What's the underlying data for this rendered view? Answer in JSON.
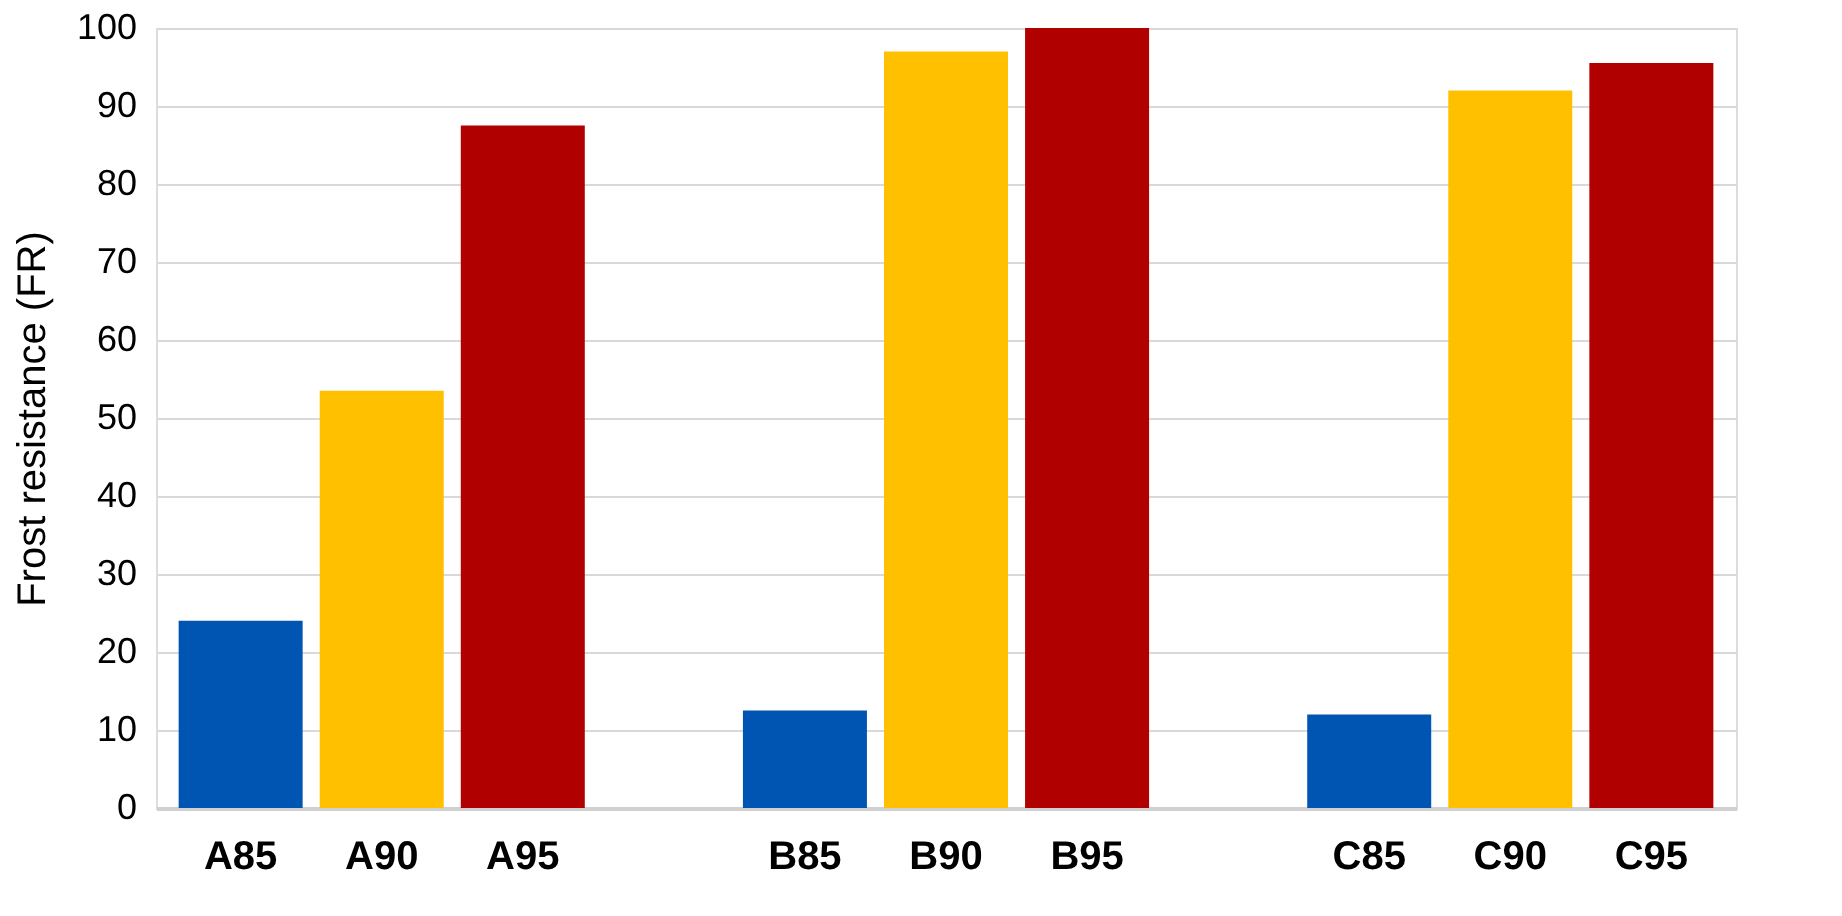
{
  "chart_data": {
    "type": "bar",
    "ylabel": "Frost resistance (FR)",
    "categories": [
      "A85",
      "A90",
      "A95",
      null,
      "B85",
      "B90",
      "B95",
      null,
      "C85",
      "C90",
      "C95"
    ],
    "values": [
      24,
      53.5,
      87.5,
      null,
      12.5,
      97,
      100,
      null,
      12,
      92,
      95.5
    ],
    "colors": [
      "#0055b2",
      "#ffc000",
      "#b00000",
      null,
      "#0055b2",
      "#ffc000",
      "#b00000",
      null,
      "#0055b2",
      "#ffc000",
      "#b00000"
    ],
    "ylim": [
      0,
      100
    ],
    "yticks": [
      0,
      10,
      20,
      30,
      40,
      50,
      60,
      70,
      80,
      90,
      100
    ],
    "grid": "y"
  }
}
